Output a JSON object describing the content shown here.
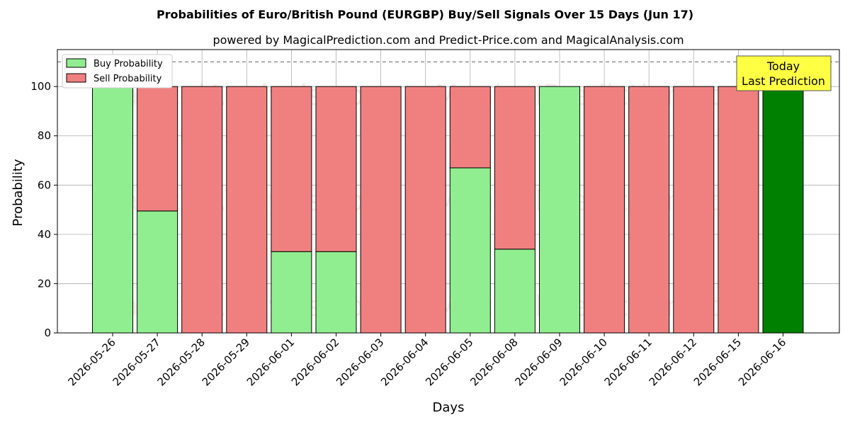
{
  "chart_data": {
    "type": "bar",
    "stacked": true,
    "title": "Probabilities of Euro/British Pound (EURGBP) Buy/Sell Signals Over 15 Days (Jun 17)",
    "subtitle": "powered by MagicalPrediction.com and Predict-Price.com and MagicalAnalysis.com",
    "xlabel": "Days",
    "ylabel": "Probability",
    "ylim": [
      0,
      115
    ],
    "yticks": [
      0,
      20,
      40,
      60,
      80,
      100
    ],
    "reference_line": 110,
    "grid": true,
    "legend_position": "top-left",
    "categories": [
      "2026-05-26",
      "2026-05-27",
      "2026-05-28",
      "2026-05-29",
      "2026-06-01",
      "2026-06-02",
      "2026-06-03",
      "2026-06-04",
      "2026-06-05",
      "2026-06-08",
      "2026-06-09",
      "2026-06-10",
      "2026-06-11",
      "2026-06-12",
      "2026-06-15",
      "2026-06-16"
    ],
    "series": [
      {
        "name": "Buy Probability",
        "color": "#90ee90",
        "values": [
          100,
          49.5,
          0,
          0,
          33,
          33,
          0,
          0,
          67,
          34,
          100,
          0,
          0,
          0,
          0,
          100
        ]
      },
      {
        "name": "Sell Probability",
        "color": "#f08080",
        "values": [
          0,
          50.5,
          100,
          100,
          67,
          67,
          100,
          100,
          33,
          66,
          0,
          100,
          100,
          100,
          100,
          0
        ]
      }
    ],
    "highlight": {
      "category": "2026-06-16",
      "color": "#008000"
    },
    "annotation": {
      "line1": "Today",
      "line2": "Last Prediction",
      "background": "#ffff44"
    },
    "watermarks": [
      "MagicalAnalysis.com",
      "MagicalPrediction.com"
    ]
  }
}
